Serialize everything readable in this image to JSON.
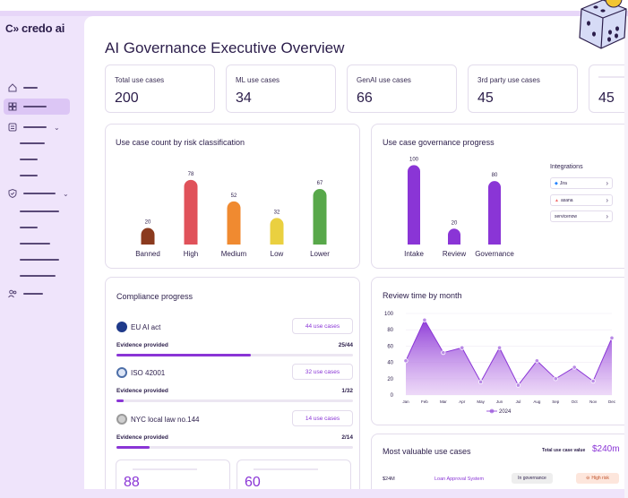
{
  "app": {
    "logo_text": "credo ai",
    "logo_mark": "C»"
  },
  "page": {
    "title": "AI Governance Executive Overview"
  },
  "stats": [
    {
      "label": "Total use cases",
      "value": "200"
    },
    {
      "label": "ML use cases",
      "value": "34"
    },
    {
      "label": "GenAI use cases",
      "value": "66"
    },
    {
      "label": "3rd party use cases",
      "value": "45"
    },
    {
      "label": "",
      "value": "45"
    }
  ],
  "risk_chart": {
    "title": "Use case count by risk classification",
    "chart_data": {
      "type": "bar",
      "categories": [
        "Banned",
        "High",
        "Medium",
        "Low",
        "Lower"
      ],
      "values": [
        20,
        78,
        52,
        32,
        67
      ],
      "colors": [
        "#8b3a1e",
        "#e0525a",
        "#f08a30",
        "#ead040",
        "#58a84a"
      ],
      "ylim": [
        0,
        80
      ]
    }
  },
  "progress_chart": {
    "title": "Use case governance progress",
    "chart_data": {
      "type": "bar",
      "categories": [
        "Intake",
        "Review",
        "Governance"
      ],
      "values": [
        100,
        20,
        80
      ],
      "colors": [
        "#8a35d6",
        "#8a35d6",
        "#8a35d6"
      ],
      "ylim": [
        0,
        105
      ]
    },
    "integrations_title": "Integrations",
    "integrations": [
      "Jira",
      "asana",
      "servicenow"
    ]
  },
  "compliance": {
    "title": "Compliance progress",
    "items": [
      {
        "name": "EU AI act",
        "button": "44 use cases",
        "evidence_label": "Evidence provided",
        "count": "25/44",
        "progress": 0.57
      },
      {
        "name": "ISO 42001",
        "button": "32 use cases",
        "evidence_label": "Evidence provided",
        "count": "1/32",
        "progress": 0.03
      },
      {
        "name": "NYC local law no.144",
        "button": "14 use cases",
        "evidence_label": "Evidence provided",
        "count": "2/14",
        "progress": 0.14
      }
    ],
    "mini_values": [
      "88",
      "60"
    ]
  },
  "review_chart": {
    "title": "Review time by month",
    "legend": "2024",
    "chart_data": {
      "type": "area",
      "x": [
        "Jan",
        "Feb",
        "Mar",
        "Apr",
        "May",
        "Jun",
        "Jul",
        "Aug",
        "Sep",
        "Oct",
        "Nov",
        "Dec"
      ],
      "series": [
        {
          "name": "2024",
          "values": [
            42,
            92,
            52,
            58,
            16,
            58,
            12,
            42,
            20,
            34,
            17,
            70
          ]
        }
      ],
      "yticks": [
        0,
        20,
        40,
        60,
        80,
        100
      ],
      "ylim": [
        0,
        100
      ]
    }
  },
  "valuable": {
    "title": "Most valuable use cases",
    "total_label": "Total use case value",
    "total_value": "$240m",
    "row": {
      "value": "$24M",
      "name": "Loan Approval System",
      "status": "In governance",
      "risk": "High risk"
    }
  }
}
